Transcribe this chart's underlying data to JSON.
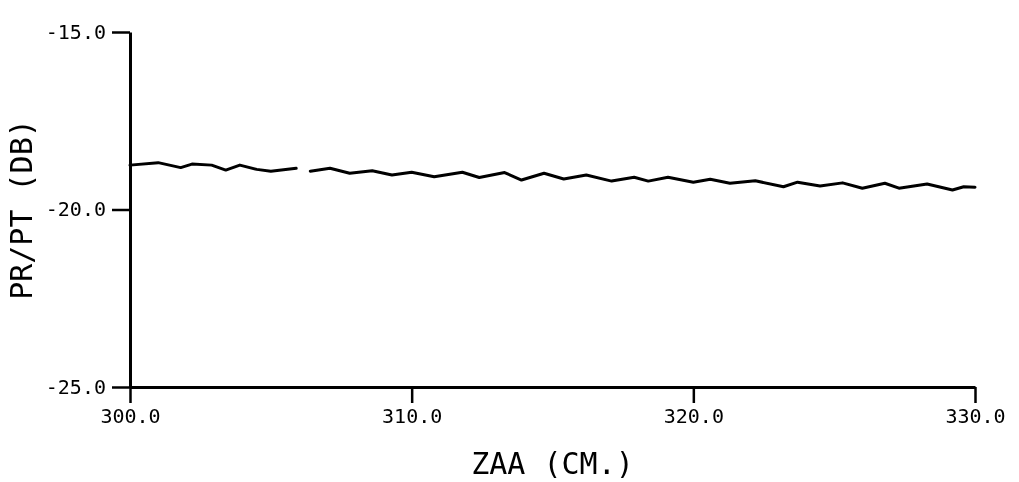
{
  "chart_data": {
    "type": "line",
    "xlabel": "ZAA (CM.)",
    "ylabel": "PR/PT (DB)",
    "xlim": [
      300,
      330
    ],
    "ylim": [
      -25,
      -15
    ],
    "xticks": [
      {
        "value": 300,
        "label": "300.0"
      },
      {
        "value": 310,
        "label": "310.0"
      },
      {
        "value": 320,
        "label": "320.0"
      },
      {
        "value": 330,
        "label": "330.0"
      }
    ],
    "yticks": [
      {
        "value": -25,
        "label": "-25.0"
      },
      {
        "value": -20,
        "label": "-20.0"
      },
      {
        "value": -15,
        "label": "-15.0"
      }
    ],
    "grid": false,
    "marker": "none",
    "line_style": "solid",
    "series": [
      {
        "color": "#000000",
        "x": [
          300.0,
          301.0,
          301.8,
          302.2,
          302.9,
          303.4,
          303.9,
          304.5,
          305.0,
          305.9,
          306.2,
          306.4,
          307.1,
          307.8,
          308.6,
          309.3,
          310.0,
          310.8,
          311.8,
          312.4,
          313.3,
          313.9,
          314.7,
          315.4,
          316.2,
          317.1,
          317.9,
          318.4,
          319.1,
          320.0,
          320.6,
          321.3,
          322.2,
          323.2,
          323.7,
          324.5,
          325.3,
          326.0,
          326.8,
          327.3,
          328.3,
          329.2,
          329.6,
          330.0
        ],
        "values": [
          -18.75,
          -18.68,
          -18.82,
          -18.72,
          -18.75,
          -18.89,
          -18.75,
          -18.87,
          -18.92,
          -18.84,
          null,
          -18.92,
          -18.84,
          -18.98,
          -18.91,
          -19.03,
          -18.95,
          -19.08,
          -18.95,
          -19.1,
          -18.96,
          -19.17,
          -18.98,
          -19.14,
          -19.03,
          -19.2,
          -19.09,
          -19.2,
          -19.09,
          -19.23,
          -19.15,
          -19.26,
          -19.19,
          -19.36,
          -19.23,
          -19.34,
          -19.25,
          -19.4,
          -19.26,
          -19.4,
          -19.28,
          -19.45,
          -19.36,
          -19.37
        ]
      }
    ]
  }
}
